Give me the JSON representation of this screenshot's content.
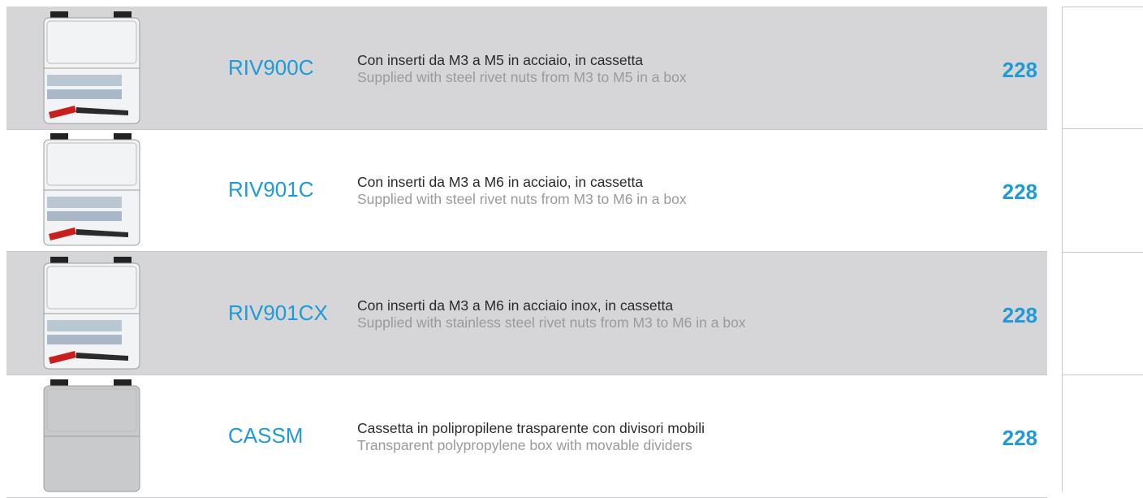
{
  "table": {
    "rows": [
      {
        "code": "RIV900C",
        "it": "Con inserti da M3 a M5 in acciaio, in cassetta",
        "en": "Supplied with steel rivet nuts from M3 to M5 in a box",
        "page": 228
      },
      {
        "code": "RIV901C",
        "it": "Con inserti da M3 a M6 in acciaio, in cassetta",
        "en": "Supplied with steel rivet nuts from M3 to M6 in a box",
        "page": 228
      },
      {
        "code": "RIV901CX",
        "it": "Con inserti da M3 a M6 in acciaio inox, in cassetta",
        "en": "Supplied with stainless steel rivet nuts from M3 to M6 in a box",
        "page": 228
      },
      {
        "code": "CASSM",
        "it": "Cassetta in polipropilene trasparente con divisori mobili",
        "en": "Transparent polypropylene box with movable dividers",
        "page": 228
      }
    ]
  }
}
